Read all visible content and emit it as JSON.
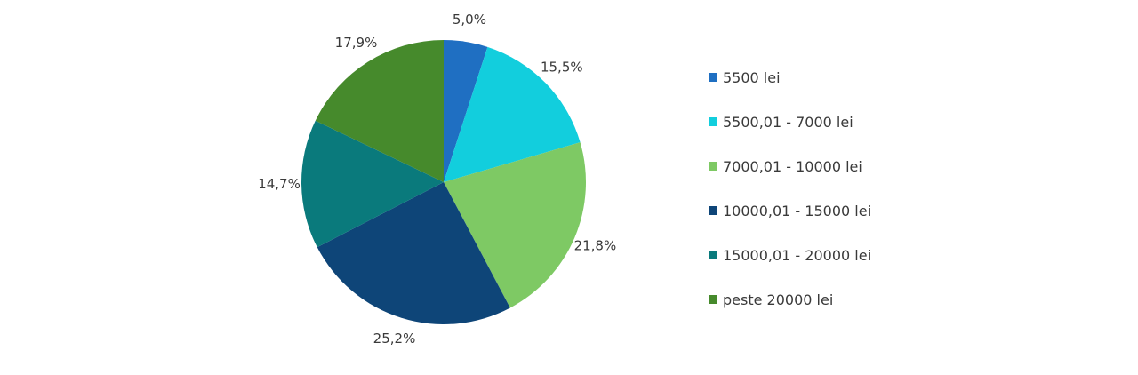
{
  "chart_data": {
    "type": "pie",
    "title": "",
    "categories": [
      "5500 lei",
      "5500,01 - 7000 lei",
      "7000,01 - 10000 lei",
      "10000,01 - 15000 lei",
      "15000,01 - 20000 lei",
      "peste 20000 lei"
    ],
    "values": [
      5.0,
      15.5,
      21.8,
      25.2,
      14.7,
      17.9
    ],
    "value_labels": [
      "5,0%",
      "15,5%",
      "21,8%",
      "25,2%",
      "14,7%",
      "17,9%"
    ],
    "colors": [
      "#1f6fc2",
      "#12cedd",
      "#7ec964",
      "#0e4578",
      "#0a7a7c",
      "#468a2c"
    ],
    "legend_position": "right",
    "start": "top, clockwise"
  }
}
